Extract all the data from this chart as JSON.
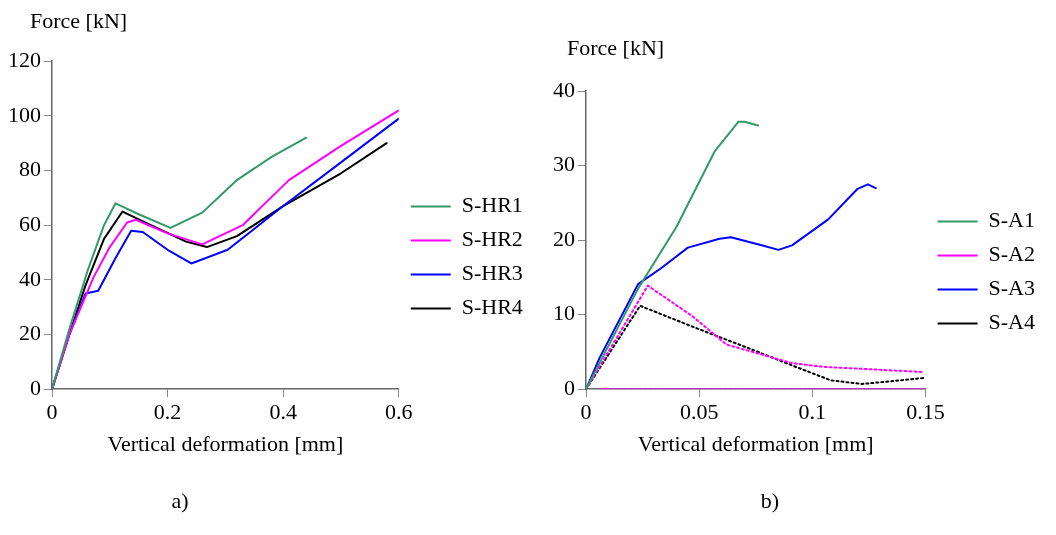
{
  "chart_data": [
    {
      "type": "line",
      "xlabel": "Vertical deformation [mm]",
      "ylabel": "Force [kN]",
      "annotations": [
        "a)"
      ],
      "xlim": [
        0,
        0.6
      ],
      "ylim": [
        0,
        120
      ],
      "xticks": [
        0,
        0.2,
        0.4,
        0.6
      ],
      "yticks": [
        0,
        20,
        40,
        60,
        80,
        100,
        120
      ],
      "grid": false,
      "legend": "right",
      "marker": "none",
      "series": [
        {
          "name": "S-HR1",
          "color": "#339966",
          "line_style": "solid",
          "x": [
            0,
            0.03,
            0.062,
            0.09,
            0.11,
            0.15,
            0.205,
            0.26,
            0.32,
            0.38,
            0.44
          ],
          "values": [
            0,
            22,
            43.6,
            60,
            68,
            64,
            59,
            64.6,
            76.5,
            85,
            92
          ]
        },
        {
          "name": "S-HR2",
          "color": "#ff00ff",
          "line_style": "solid",
          "x": [
            0,
            0.03,
            0.072,
            0.1,
            0.13,
            0.145,
            0.2,
            0.26,
            0.33,
            0.41,
            0.5,
            0.6
          ],
          "values": [
            0,
            20,
            41,
            52,
            61,
            62,
            57,
            53,
            60,
            76.5,
            89,
            102
          ]
        },
        {
          "name": "S-HR3",
          "color": "#0000ff",
          "line_style": "solid",
          "x": [
            0,
            0.03,
            0.058,
            0.08,
            0.11,
            0.137,
            0.157,
            0.2,
            0.241,
            0.304,
            0.4,
            0.5,
            0.6
          ],
          "values": [
            0,
            20,
            35,
            36,
            48,
            58,
            57.5,
            51,
            46,
            51,
            67,
            83,
            99
          ]
        },
        {
          "name": "S-HR4",
          "color": "#000000",
          "line_style": "solid",
          "x": [
            0,
            0.03,
            0.058,
            0.09,
            0.122,
            0.161,
            0.232,
            0.268,
            0.32,
            0.4,
            0.5,
            0.579
          ],
          "values": [
            0,
            20,
            38,
            55,
            65,
            61,
            54,
            52,
            56,
            67,
            79,
            90
          ]
        }
      ]
    },
    {
      "type": "line",
      "xlabel": "Vertical deformation [mm]",
      "ylabel": "Force [kN]",
      "annotations": [
        "b)"
      ],
      "xlim": [
        0,
        0.15
      ],
      "ylim": [
        0,
        40
      ],
      "xticks": [
        0,
        0.05,
        0.1,
        0.15
      ],
      "yticks": [
        0,
        10,
        20,
        30,
        40
      ],
      "grid": false,
      "legend": "right",
      "marker": "none",
      "series": [
        {
          "name": "S-A1",
          "color": "#339966",
          "line_style": "solid",
          "x": [
            0,
            0.023,
            0.04,
            0.057,
            0.0674,
            0.07,
            0.076
          ],
          "values": [
            0,
            13.5,
            21.8,
            32,
            35.9,
            35.9,
            35.4
          ]
        },
        {
          "name": "S-A2",
          "color": "#ff00ff",
          "line_style": "dotted",
          "x": [
            0,
            0.0273,
            0.047,
            0.062,
            0.091,
            0.105,
            0.149
          ],
          "values": [
            0,
            13.9,
            9.8,
            6,
            3.5,
            3,
            2.3
          ]
        },
        {
          "name": "S-A3",
          "color": "#0000ff",
          "line_style": "solid",
          "x": [
            0,
            0.006,
            0.023,
            0.033,
            0.045,
            0.059,
            0.064,
            0.078,
            0.085,
            0.091,
            0.107,
            0.12,
            0.1245,
            0.128
          ],
          "values": [
            0,
            4.2,
            14.1,
            16.2,
            19,
            20.2,
            20.4,
            19.3,
            18.7,
            19.3,
            22.8,
            26.9,
            27.5,
            27
          ]
        },
        {
          "name": "S-A4",
          "color": "#000000",
          "line_style": "dotted",
          "x": [
            0,
            0.0239,
            0.047,
            0.071,
            0.091,
            0.108,
            0.122,
            0.149
          ],
          "values": [
            0,
            11.2,
            8.4,
            5.6,
            3.2,
            1.2,
            0.7,
            1.5
          ]
        },
        {
          "color": "#ff00ff",
          "line_style": "dotted",
          "x": [
            0.006,
            0.15
          ],
          "values": [
            0,
            0
          ]
        }
      ]
    }
  ]
}
